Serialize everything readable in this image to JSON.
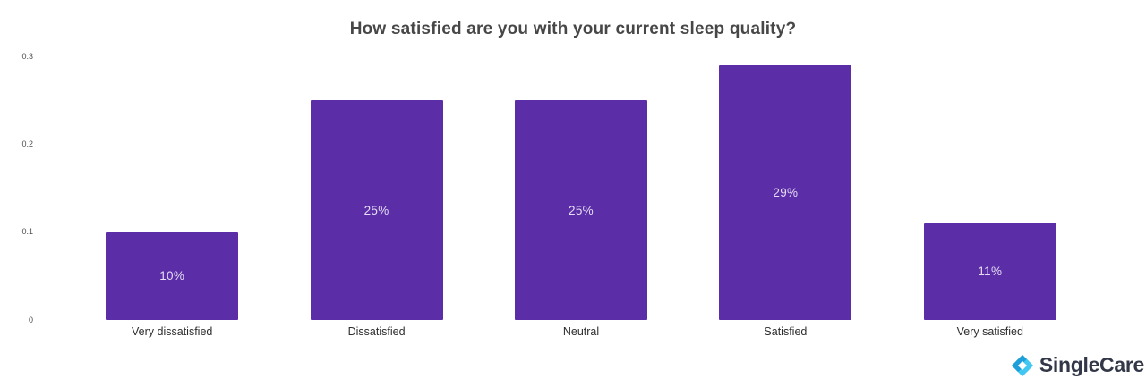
{
  "page": {
    "background_color": "#ffffff"
  },
  "chart_data": {
    "type": "bar",
    "title": "How satisfied are you with your current sleep quality?",
    "categories": [
      "Very dissatisfied",
      "Dissatisfied",
      "Neutral",
      "Satisfied",
      "Very satisfied"
    ],
    "values": [
      0.1,
      0.25,
      0.25,
      0.29,
      0.11
    ],
    "bar_labels": [
      "10%",
      "25%",
      "25%",
      "29%",
      "11%"
    ],
    "y_axis_ticks": [
      0.3,
      0.2,
      0.1,
      0
    ],
    "y_axis_tick_labels": [
      "0.3",
      "0.2",
      "0.1",
      "0"
    ],
    "ylim": [
      0,
      0.305
    ],
    "xlabel": "",
    "ylabel": "",
    "grid": "off",
    "legend": "none",
    "bar_color": "#5b2da6",
    "bar_label_color": "#e4ddf3",
    "title_color": "#474747",
    "axis_label_color": "#4d4d4d"
  },
  "branding": {
    "logo_text": "SingleCare",
    "logo_icon": "singlecare-diamond-icon",
    "logo_text_color": "#323848",
    "icon_color_dark": "#1d9fd9",
    "icon_color_light": "#41c8f2"
  }
}
